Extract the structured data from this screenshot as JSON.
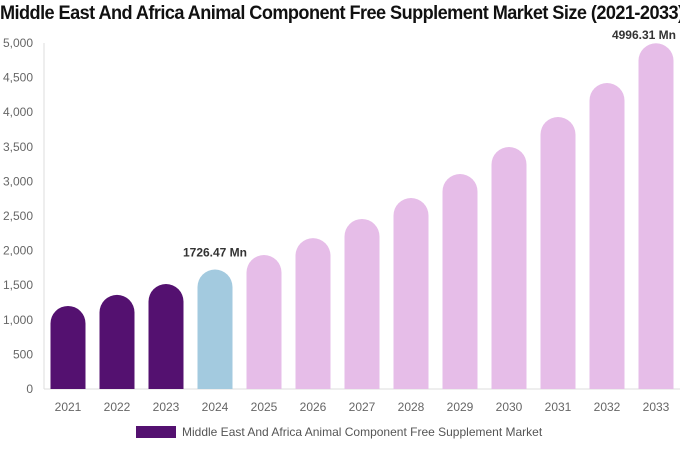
{
  "chart_data": {
    "type": "bar",
    "title": "Middle East And Africa Animal Component Free Supplement Market Size (2021-2033)",
    "categories": [
      "2021",
      "2022",
      "2023",
      "2024",
      "2025",
      "2026",
      "2027",
      "2028",
      "2029",
      "2030",
      "2031",
      "2032",
      "2033"
    ],
    "series": [
      {
        "name": "Middle East And Africa Animal Component Free Supplement Market",
        "values": [
          1200,
          1360,
          1517,
          1726.47,
          1936,
          2180,
          2457,
          2760,
          3107,
          3497,
          3930,
          4422,
          4996.31
        ]
      }
    ],
    "data_labels": {
      "2024": "1726.47 Mn",
      "2033": "4996.31 Mn"
    },
    "ylim": [
      0,
      5000
    ],
    "yticks": [
      "0",
      "500",
      "1,000",
      "1,500",
      "2,000",
      "2,500",
      "3,000",
      "3,500",
      "4,000",
      "4,500",
      "5,000"
    ],
    "colors": {
      "historical": "#541170",
      "current": "#a3cadf",
      "forecast": "#e6bde8"
    },
    "legend_position": "bottom"
  }
}
